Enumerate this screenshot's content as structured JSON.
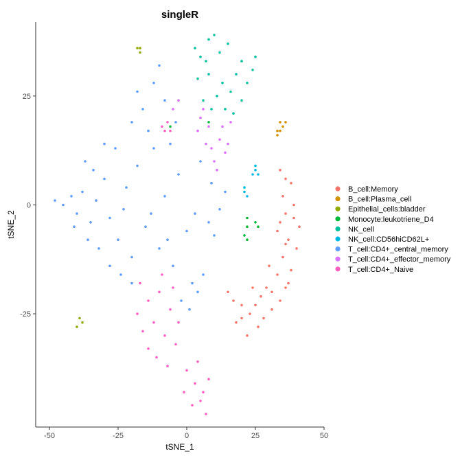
{
  "chart_data": {
    "type": "scatter",
    "title": "singleR",
    "xlabel": "tSNE_1",
    "ylabel": "tSNE_2",
    "xlim": [
      -55,
      50
    ],
    "ylim": [
      -51,
      42
    ],
    "xticks": [
      -50,
      -25,
      0,
      25,
      50
    ],
    "yticks": [
      25,
      0,
      -25
    ],
    "grid": false,
    "legend_position": "right",
    "series": [
      {
        "name": "B_cell:Memory",
        "color": "#F8766D",
        "points": [
          [
            34,
            8
          ],
          [
            36,
            6
          ],
          [
            35,
            2
          ],
          [
            38,
            5
          ],
          [
            36,
            -2
          ],
          [
            39,
            -3
          ],
          [
            33,
            -6
          ],
          [
            37,
            -8
          ],
          [
            40,
            -10
          ],
          [
            35,
            -12
          ],
          [
            38,
            -15
          ],
          [
            33,
            -16
          ],
          [
            36,
            -19
          ],
          [
            31,
            -20
          ],
          [
            34,
            -22
          ],
          [
            29,
            -19
          ],
          [
            27,
            -21
          ],
          [
            31,
            -24
          ],
          [
            25,
            -23
          ],
          [
            28,
            -26
          ],
          [
            23,
            -25
          ],
          [
            26,
            -28
          ],
          [
            22,
            -30
          ],
          [
            18,
            -27
          ],
          [
            20,
            -23
          ],
          [
            17,
            -22
          ],
          [
            15,
            -20
          ],
          [
            24,
            -19
          ],
          [
            20,
            -26
          ],
          [
            37,
            -18
          ],
          [
            30,
            -14
          ],
          [
            39,
            0
          ],
          [
            41,
            -5
          ],
          [
            34,
            -4
          ],
          [
            36,
            -9
          ]
        ]
      },
      {
        "name": "B_cell:Plasma_cell",
        "color": "#D39200",
        "points": [
          [
            33,
            16
          ],
          [
            34,
            17
          ],
          [
            35,
            18
          ],
          [
            34,
            19
          ],
          [
            36,
            19
          ],
          [
            33,
            17
          ]
        ]
      },
      {
        "name": "Epithelial_cells:bladder",
        "color": "#93AA00",
        "points": [
          [
            -17,
            35
          ],
          [
            -18,
            36
          ],
          [
            -17,
            36
          ],
          [
            -39,
            -26
          ],
          [
            -38,
            -27
          ],
          [
            -40,
            -28
          ]
        ]
      },
      {
        "name": "Monocyte:leukotriene_D4",
        "color": "#00BA38",
        "points": [
          [
            22,
            -3
          ],
          [
            22,
            -5
          ],
          [
            21,
            -7
          ],
          [
            22,
            -8
          ],
          [
            25,
            -4
          ],
          [
            26,
            -5
          ],
          [
            8,
            19
          ],
          [
            -6,
            18
          ]
        ]
      },
      {
        "name": "NK_cell",
        "color": "#00C19F",
        "points": [
          [
            3,
            36
          ],
          [
            5,
            34
          ],
          [
            8,
            38
          ],
          [
            12,
            35
          ],
          [
            15,
            37
          ],
          [
            20,
            33
          ],
          [
            24,
            31
          ],
          [
            25,
            34
          ],
          [
            18,
            30
          ],
          [
            13,
            28
          ],
          [
            8,
            30
          ],
          [
            4,
            29
          ],
          [
            11,
            25
          ],
          [
            14,
            22
          ],
          [
            17,
            21
          ],
          [
            20,
            24
          ],
          [
            6,
            24
          ],
          [
            9,
            22
          ],
          [
            16,
            26
          ],
          [
            22,
            28
          ],
          [
            10,
            39
          ],
          [
            7,
            33
          ]
        ]
      },
      {
        "name": "NK_cell:CD56hiCD62L+",
        "color": "#00B9E3",
        "points": [
          [
            25,
            8
          ],
          [
            26,
            7
          ],
          [
            24,
            7
          ],
          [
            25,
            9
          ],
          [
            21,
            3
          ],
          [
            22,
            2
          ],
          [
            21,
            4
          ]
        ]
      },
      {
        "name": "T_cell:CD4+_central_memory",
        "color": "#619CFF",
        "points": [
          [
            -48,
            1
          ],
          [
            -45,
            0
          ],
          [
            -42,
            2
          ],
          [
            -40,
            -2
          ],
          [
            -38,
            3
          ],
          [
            -35,
            -4
          ],
          [
            -33,
            1
          ],
          [
            -30,
            6
          ],
          [
            -28,
            -3
          ],
          [
            -25,
            -8
          ],
          [
            -22,
            4
          ],
          [
            -20,
            -12
          ],
          [
            -18,
            9
          ],
          [
            -15,
            -5
          ],
          [
            -12,
            13
          ],
          [
            -10,
            -10
          ],
          [
            -8,
            2
          ],
          [
            -5,
            -14
          ],
          [
            -3,
            7
          ],
          [
            0,
            -6
          ],
          [
            3,
            -2
          ],
          [
            5,
            10
          ],
          [
            8,
            -4
          ],
          [
            10,
            -7
          ],
          [
            12,
            -1
          ],
          [
            14,
            3
          ],
          [
            6,
            -16
          ],
          [
            2,
            -18
          ],
          [
            -14,
            17
          ],
          [
            -16,
            22
          ],
          [
            -18,
            26
          ],
          [
            -12,
            28
          ],
          [
            -10,
            32
          ],
          [
            -8,
            24
          ],
          [
            -20,
            19
          ],
          [
            -26,
            13
          ],
          [
            -30,
            14
          ],
          [
            -34,
            8
          ],
          [
            -36,
            -8
          ],
          [
            -32,
            -10
          ],
          [
            -28,
            -14
          ],
          [
            -24,
            -16
          ],
          [
            -20,
            -18
          ],
          [
            -4,
            19
          ],
          [
            -6,
            14
          ],
          [
            -2,
            -22
          ],
          [
            1,
            -24
          ],
          [
            4,
            -20
          ],
          [
            -23,
            -1
          ],
          [
            -13,
            -2
          ],
          [
            -7,
            -8
          ],
          [
            9,
            5
          ],
          [
            -37,
            10
          ],
          [
            -41,
            -5
          ]
        ]
      },
      {
        "name": "T_cell:CD4+_effector_memory",
        "color": "#DB72FB",
        "points": [
          [
            -5,
            22
          ],
          [
            -3,
            24
          ],
          [
            5,
            20
          ],
          [
            8,
            18
          ],
          [
            12,
            15
          ],
          [
            14,
            12
          ],
          [
            10,
            10
          ],
          [
            7,
            14
          ],
          [
            13,
            18
          ],
          [
            16,
            19
          ],
          [
            11,
            8
          ],
          [
            15,
            14
          ],
          [
            6,
            22
          ],
          [
            9,
            13
          ],
          [
            4,
            17
          ]
        ]
      },
      {
        "name": "T_cell:CD4+_Naive",
        "color": "#FF61C3",
        "points": [
          [
            -17,
            -18
          ],
          [
            -14,
            -22
          ],
          [
            -10,
            -20
          ],
          [
            -6,
            -24
          ],
          [
            -12,
            -27
          ],
          [
            -16,
            -29
          ],
          [
            -8,
            -30
          ],
          [
            -4,
            -32
          ],
          [
            -11,
            -35
          ],
          [
            -14,
            -33
          ],
          [
            -7,
            -37
          ],
          [
            -3,
            -27
          ],
          [
            -18,
            -25
          ],
          [
            -9,
            -16
          ],
          [
            -5,
            -19
          ],
          [
            0,
            -38
          ],
          [
            3,
            -41
          ],
          [
            6,
            -43
          ],
          [
            2,
            -46
          ],
          [
            5,
            -45
          ],
          [
            8,
            -40
          ],
          [
            4,
            -36
          ],
          [
            7,
            -48
          ],
          [
            -1,
            -43
          ],
          [
            -9,
            18
          ],
          [
            -6,
            17
          ],
          [
            -7,
            19
          ],
          [
            -8,
            17
          ]
        ]
      }
    ]
  }
}
